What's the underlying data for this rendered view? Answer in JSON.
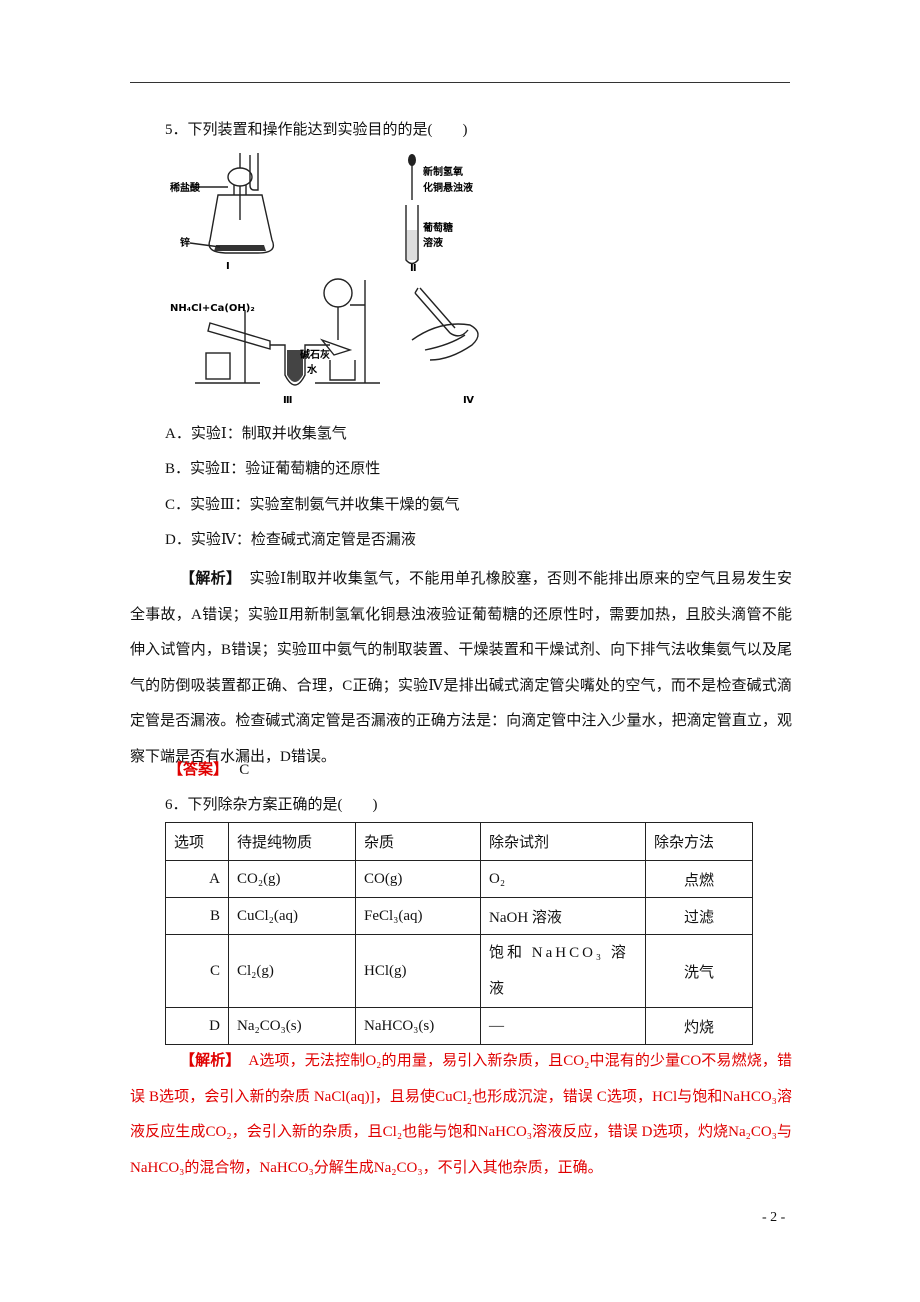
{
  "q5": {
    "stem": "5．下列装置和操作能达到实验目的的是(　　)",
    "figure": {
      "labels": [
        "稀盐酸",
        "锌",
        "Ⅰ",
        "新制氢氧",
        "化铜悬浊液",
        "葡萄糖",
        "溶液",
        "Ⅱ",
        "NH₄Cl+Ca(OH)₂",
        "碱石灰",
        "水",
        "Ⅲ",
        "Ⅳ"
      ]
    },
    "options": [
      "A．实验Ⅰ：制取并收集氢气",
      "B．实验Ⅱ：验证葡萄糖的还原性",
      "C．实验Ⅲ：实验室制氨气并收集干燥的氨气",
      "D．实验Ⅳ：检查碱式滴定管是否漏液"
    ],
    "analysis": {
      "label": "【解析】",
      "text": "实验Ⅰ制取并收集氢气，不能用单孔橡胶塞，否则不能排出原来的空气且易发生安全事故，A错误；实验Ⅱ用新制氢氧化铜悬浊液验证葡萄糖的还原性时，需要加热，且胶头滴管不能伸入试管内，B错误；实验Ⅲ中氨气的制取装置、干燥装置和干燥试剂、向下排气法收集氨气以及尾气的防倒吸装置都正确、合理，C正确；实验Ⅳ是排出碱式滴定管尖嘴处的空气，而不是检查碱式滴定管是否漏液。检查碱式滴定管是否漏液的正确方法是：向滴定管中注入少量水，把滴定管直立，观察下端是否有水漏出，D错误。"
    },
    "answer": {
      "label": "【答案】",
      "value": "C"
    }
  },
  "q6": {
    "stem": "6．下列除杂方案正确的是(　　)",
    "table": {
      "header": [
        "选项",
        "待提纯物质",
        "杂质",
        "除杂试剂",
        "除杂方法"
      ],
      "rows": [
        [
          "A",
          "CO₂(g)",
          "CO(g)",
          "O₂",
          "点燃"
        ],
        [
          "B",
          "CuCl₂(aq)",
          "FeCl₃(aq)",
          "NaOH 溶液",
          "过滤"
        ],
        [
          "C",
          "Cl₂(g)",
          "HCl(g)",
          "饱和 NaHCO₃ 溶液",
          "洗气"
        ],
        [
          "D",
          "Na₂CO₃(s)",
          "NaHCO₃(s)",
          "—",
          "灼烧"
        ]
      ]
    },
    "analysis": {
      "label": "【解析】",
      "text": "A选项，无法控制O₂的用量，易引入新杂质，且CO₂中混有的少量CO不易燃烧，错误 B选项，会引入新的杂质 NaCl(aq)]，且易使CuCl₂也形成沉淀，错误 C选项，HCl与饱和NaHCO₃溶液反应生成CO₂，会引入新的杂质，且Cl₂也能与饱和NaHCO₃溶液反应，错误 D选项，灼烧Na₂CO₃与NaHCO₃的混合物，NaHCO₃分解生成Na₂CO₃，不引入其他杂质，正确。"
    }
  },
  "page_number": "- 2 -"
}
